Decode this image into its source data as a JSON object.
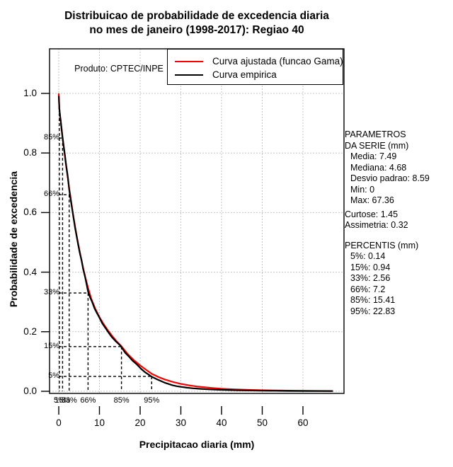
{
  "title": {
    "line1": "Distribuicao de probabilidade de excedencia diaria",
    "line2": "no mes de janeiro (1998-2017): Regiao 40"
  },
  "plot_note": "Produto: CPTEC/INPE",
  "axes": {
    "x_label": "Precipitacao diaria (mm)",
    "y_label": "Probabilidade de excedencia"
  },
  "legend": {
    "items": [
      {
        "label": "Curva ajustada (funcao Gama)",
        "color": "#ff0000"
      },
      {
        "label": "Curva empirica",
        "color": "#000000"
      }
    ]
  },
  "side_panel": {
    "sections": [
      {
        "lines": [
          {
            "text": "PARAMETROS",
            "indent": false
          },
          {
            "text": "DA SERIE (mm)",
            "indent": false
          },
          {
            "text": "Media: 7.49",
            "indent": true
          },
          {
            "text": "Mediana: 4.68",
            "indent": true
          },
          {
            "text": "Desvio padrao: 8.59",
            "indent": true
          },
          {
            "text": "Min: 0",
            "indent": true
          },
          {
            "text": "Max: 67.36",
            "indent": true
          }
        ]
      },
      {
        "lines": [
          {
            "text": "Curtose: 1.45",
            "indent": false
          },
          {
            "text": "Assimetria: 0.32",
            "indent": false
          }
        ]
      },
      {
        "lines": [
          {
            "text": "PERCENTIS (mm)",
            "indent": false
          },
          {
            "text": "5%: 0.14",
            "indent": true
          },
          {
            "text": "15%: 0.94",
            "indent": true
          },
          {
            "text": "33%: 2.56",
            "indent": true
          },
          {
            "text": "66%: 7.2",
            "indent": true
          },
          {
            "text": "85%: 15.41",
            "indent": true
          },
          {
            "text": "95%: 22.83",
            "indent": true
          }
        ]
      }
    ]
  },
  "chart_data": {
    "type": "line",
    "title": "Distribuicao de probabilidade de excedencia diaria no mes de janeiro (1998-2017): Regiao 40",
    "xlabel": "Precipitacao diaria (mm)",
    "ylabel": "Probabilidade de excedencia",
    "xlim": [
      0,
      67.36
    ],
    "ylim": [
      0,
      1.0
    ],
    "grid": true,
    "grid_color": "#c4c4c4",
    "legend_position": "top-right",
    "x_ticks": [
      {
        "label": "0",
        "value": 0
      },
      {
        "label": "10",
        "value": 10
      },
      {
        "label": "20",
        "value": 20
      },
      {
        "label": "30",
        "value": 30
      },
      {
        "label": "40",
        "value": 40
      },
      {
        "label": "50",
        "value": 50
      },
      {
        "label": "60",
        "value": 60
      }
    ],
    "y_ticks": [
      {
        "label": "0.0",
        "value": 0.0
      },
      {
        "label": "0.2",
        "value": 0.2
      },
      {
        "label": "0.4",
        "value": 0.4
      },
      {
        "label": "0.6",
        "value": 0.6
      },
      {
        "label": "0.8",
        "value": 0.8
      },
      {
        "label": "1.0",
        "value": 1.0
      }
    ],
    "percentile_guides": [
      {
        "bottom_label": "5%",
        "left_label": "",
        "value": 0.14,
        "exceedance": 0.95
      },
      {
        "bottom_label": "15%",
        "left_label": "85%",
        "value": 0.94,
        "exceedance": 0.85
      },
      {
        "bottom_label": "33%",
        "left_label": "66%",
        "value": 2.56,
        "exceedance": 0.66
      },
      {
        "bottom_label": "66%",
        "left_label": "33%",
        "value": 7.2,
        "exceedance": 0.33
      },
      {
        "bottom_label": "85%",
        "left_label": "15%",
        "value": 15.41,
        "exceedance": 0.15
      },
      {
        "bottom_label": "95%",
        "left_label": "5%",
        "value": 22.83,
        "exceedance": 0.05
      }
    ],
    "series": [
      {
        "name": "Curva ajustada (funcao Gama)",
        "color": "#ff0000",
        "points": [
          [
            0,
            1.0
          ],
          [
            0.14,
            0.95
          ],
          [
            0.4,
            0.915
          ],
          [
            0.7,
            0.882
          ],
          [
            0.94,
            0.853
          ],
          [
            1.3,
            0.812
          ],
          [
            1.7,
            0.768
          ],
          [
            2.1,
            0.728
          ],
          [
            2.56,
            0.683
          ],
          [
            3.0,
            0.641
          ],
          [
            3.5,
            0.596
          ],
          [
            4.0,
            0.554
          ],
          [
            4.5,
            0.515
          ],
          [
            5.0,
            0.479
          ],
          [
            5.5,
            0.446
          ],
          [
            6.0,
            0.414
          ],
          [
            6.6,
            0.379
          ],
          [
            7.2,
            0.347
          ],
          [
            8.0,
            0.31
          ],
          [
            9.0,
            0.276
          ],
          [
            10,
            0.249
          ],
          [
            11,
            0.226
          ],
          [
            12,
            0.206
          ],
          [
            13,
            0.188
          ],
          [
            14,
            0.171
          ],
          [
            15.41,
            0.151
          ],
          [
            17,
            0.124
          ],
          [
            18.5,
            0.104
          ],
          [
            20,
            0.087
          ],
          [
            21.5,
            0.072
          ],
          [
            22.83,
            0.059
          ],
          [
            24.5,
            0.048
          ],
          [
            26,
            0.04
          ],
          [
            28,
            0.0315
          ],
          [
            30,
            0.025
          ],
          [
            32,
            0.02
          ],
          [
            34,
            0.0162
          ],
          [
            36,
            0.0132
          ],
          [
            38,
            0.0108
          ],
          [
            40,
            0.0089
          ],
          [
            43,
            0.0066
          ],
          [
            46,
            0.005
          ],
          [
            49,
            0.0039
          ],
          [
            52,
            0.003
          ],
          [
            55,
            0.0024
          ],
          [
            58,
            0.0019
          ],
          [
            61,
            0.0015
          ],
          [
            64,
            0.0012
          ],
          [
            67.36,
            0.0009
          ]
        ]
      },
      {
        "name": "Curva empirica",
        "color": "#000000",
        "points": [
          [
            0,
            0.992
          ],
          [
            0.1,
            0.963
          ],
          [
            0.14,
            0.95
          ],
          [
            0.3,
            0.928
          ],
          [
            0.5,
            0.906
          ],
          [
            0.7,
            0.88
          ],
          [
            0.94,
            0.85
          ],
          [
            1.2,
            0.824
          ],
          [
            1.5,
            0.795
          ],
          [
            1.8,
            0.762
          ],
          [
            2.1,
            0.732
          ],
          [
            2.3,
            0.712
          ],
          [
            2.56,
            0.678
          ],
          [
            2.8,
            0.655
          ],
          [
            3.2,
            0.62
          ],
          [
            3.6,
            0.585
          ],
          [
            4.0,
            0.55
          ],
          [
            4.4,
            0.52
          ],
          [
            4.8,
            0.49
          ],
          [
            5.2,
            0.463
          ],
          [
            5.6,
            0.44
          ],
          [
            6.0,
            0.41
          ],
          [
            6.5,
            0.382
          ],
          [
            7.2,
            0.335
          ],
          [
            7.7,
            0.315
          ],
          [
            8.2,
            0.3
          ],
          [
            8.8,
            0.278
          ],
          [
            9.4,
            0.262
          ],
          [
            10,
            0.247
          ],
          [
            10.7,
            0.228
          ],
          [
            11.5,
            0.212
          ],
          [
            12.3,
            0.196
          ],
          [
            13.1,
            0.181
          ],
          [
            14,
            0.168
          ],
          [
            15,
            0.155
          ],
          [
            15.41,
            0.148
          ],
          [
            16.3,
            0.13
          ],
          [
            17.2,
            0.117
          ],
          [
            18.2,
            0.102
          ],
          [
            19.2,
            0.09
          ],
          [
            20.2,
            0.076
          ],
          [
            21.2,
            0.064
          ],
          [
            22.2,
            0.055
          ],
          [
            22.83,
            0.049
          ],
          [
            24,
            0.041
          ],
          [
            25,
            0.035
          ],
          [
            26,
            0.029
          ],
          [
            27,
            0.0245
          ],
          [
            28,
            0.02
          ],
          [
            29,
            0.0172
          ],
          [
            30,
            0.015
          ],
          [
            31.5,
            0.012
          ],
          [
            33,
            0.01
          ],
          [
            35,
            0.008
          ],
          [
            37,
            0.0064
          ],
          [
            39,
            0.0053
          ],
          [
            41,
            0.0044
          ],
          [
            44,
            0.0034
          ],
          [
            47,
            0.0027
          ],
          [
            50,
            0.0021
          ],
          [
            53,
            0.0017
          ],
          [
            56,
            0.0013
          ],
          [
            60,
            0.001
          ],
          [
            63,
            0.0008
          ],
          [
            67.36,
            0.0006
          ]
        ]
      }
    ]
  }
}
